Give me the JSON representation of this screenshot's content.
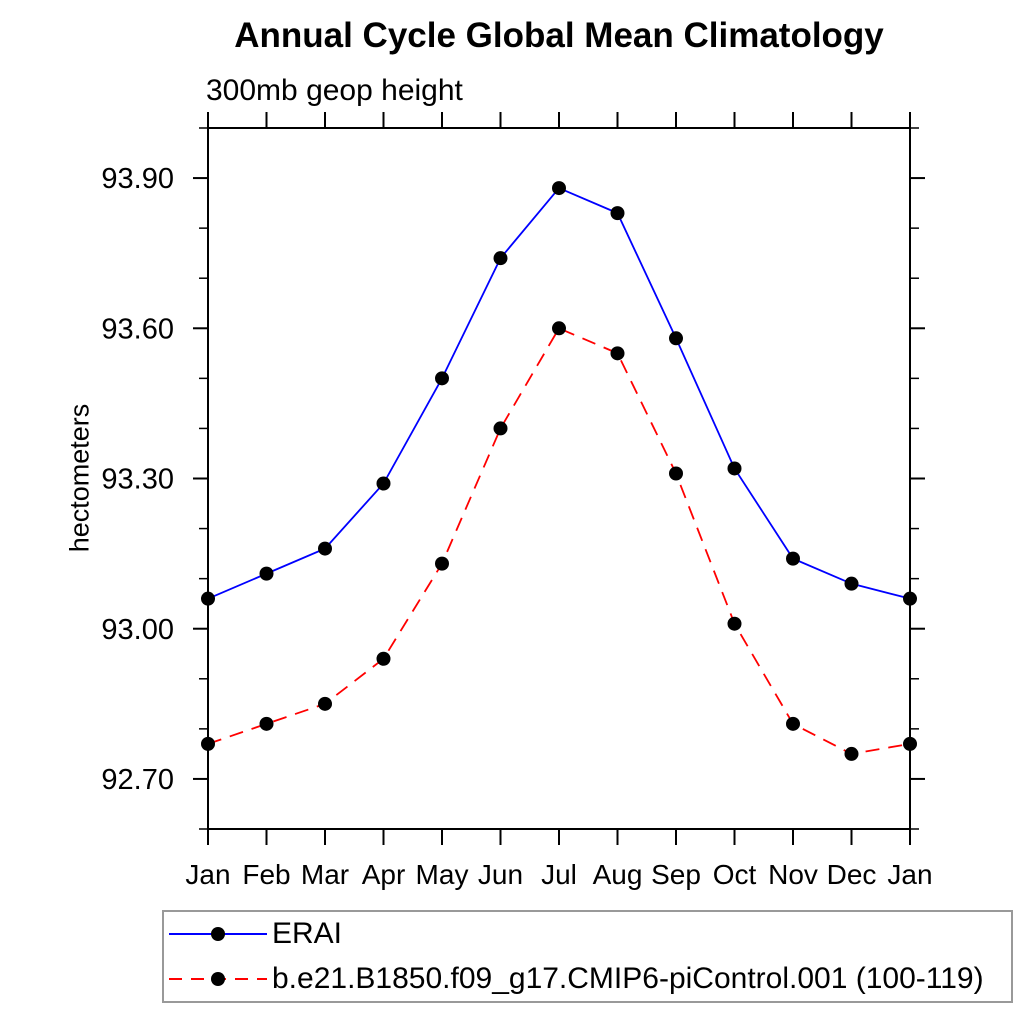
{
  "title": "Annual Cycle Global Mean Climatology",
  "subtitle": "300mb geop height",
  "y_axis_label": "hectometers",
  "colors": {
    "erai_line": "#0000ff",
    "model_line": "#ff0000",
    "marker": "#000000",
    "axis": "#000000",
    "legend_border": "#999999"
  },
  "legend": {
    "items": [
      {
        "label": "ERAI",
        "color": "#0000ff",
        "style": "solid"
      },
      {
        "label": "b.e21.B1850.f09_g17.CMIP6-piControl.001 (100-119)",
        "color": "#ff0000",
        "style": "dashed"
      }
    ]
  },
  "chart_data": {
    "type": "line",
    "title": "Annual Cycle Global Mean Climatology",
    "subtitle": "300mb geop height",
    "xlabel": "",
    "ylabel": "hectometers",
    "categories": [
      "Jan",
      "Feb",
      "Mar",
      "Apr",
      "May",
      "Jun",
      "Jul",
      "Aug",
      "Sep",
      "Oct",
      "Nov",
      "Dec",
      "Jan"
    ],
    "ylim": [
      92.6,
      94.0
    ],
    "yticks_major": [
      {
        "value": 92.7,
        "label": "92.70"
      },
      {
        "value": 93.0,
        "label": "93.00"
      },
      {
        "value": 93.3,
        "label": "93.30"
      },
      {
        "value": 93.6,
        "label": "93.60"
      },
      {
        "value": 93.9,
        "label": "93.90"
      }
    ],
    "ytick_minor_step": 0.1,
    "grid": false,
    "legend_position": "bottom",
    "marker": {
      "shape": "circle",
      "color": "#000000",
      "radius": 7
    },
    "series": [
      {
        "name": "ERAI",
        "color": "#0000ff",
        "dash": "solid",
        "values": [
          93.06,
          93.11,
          93.16,
          93.29,
          93.5,
          93.74,
          93.88,
          93.83,
          93.58,
          93.32,
          93.14,
          93.09,
          93.06
        ]
      },
      {
        "name": "b.e21.B1850.f09_g17.CMIP6-piControl.001 (100-119)",
        "color": "#ff0000",
        "dash": "dashed",
        "values": [
          92.77,
          92.81,
          92.85,
          92.94,
          93.13,
          93.4,
          93.6,
          93.55,
          93.31,
          93.01,
          92.81,
          92.75,
          92.77
        ]
      }
    ]
  }
}
